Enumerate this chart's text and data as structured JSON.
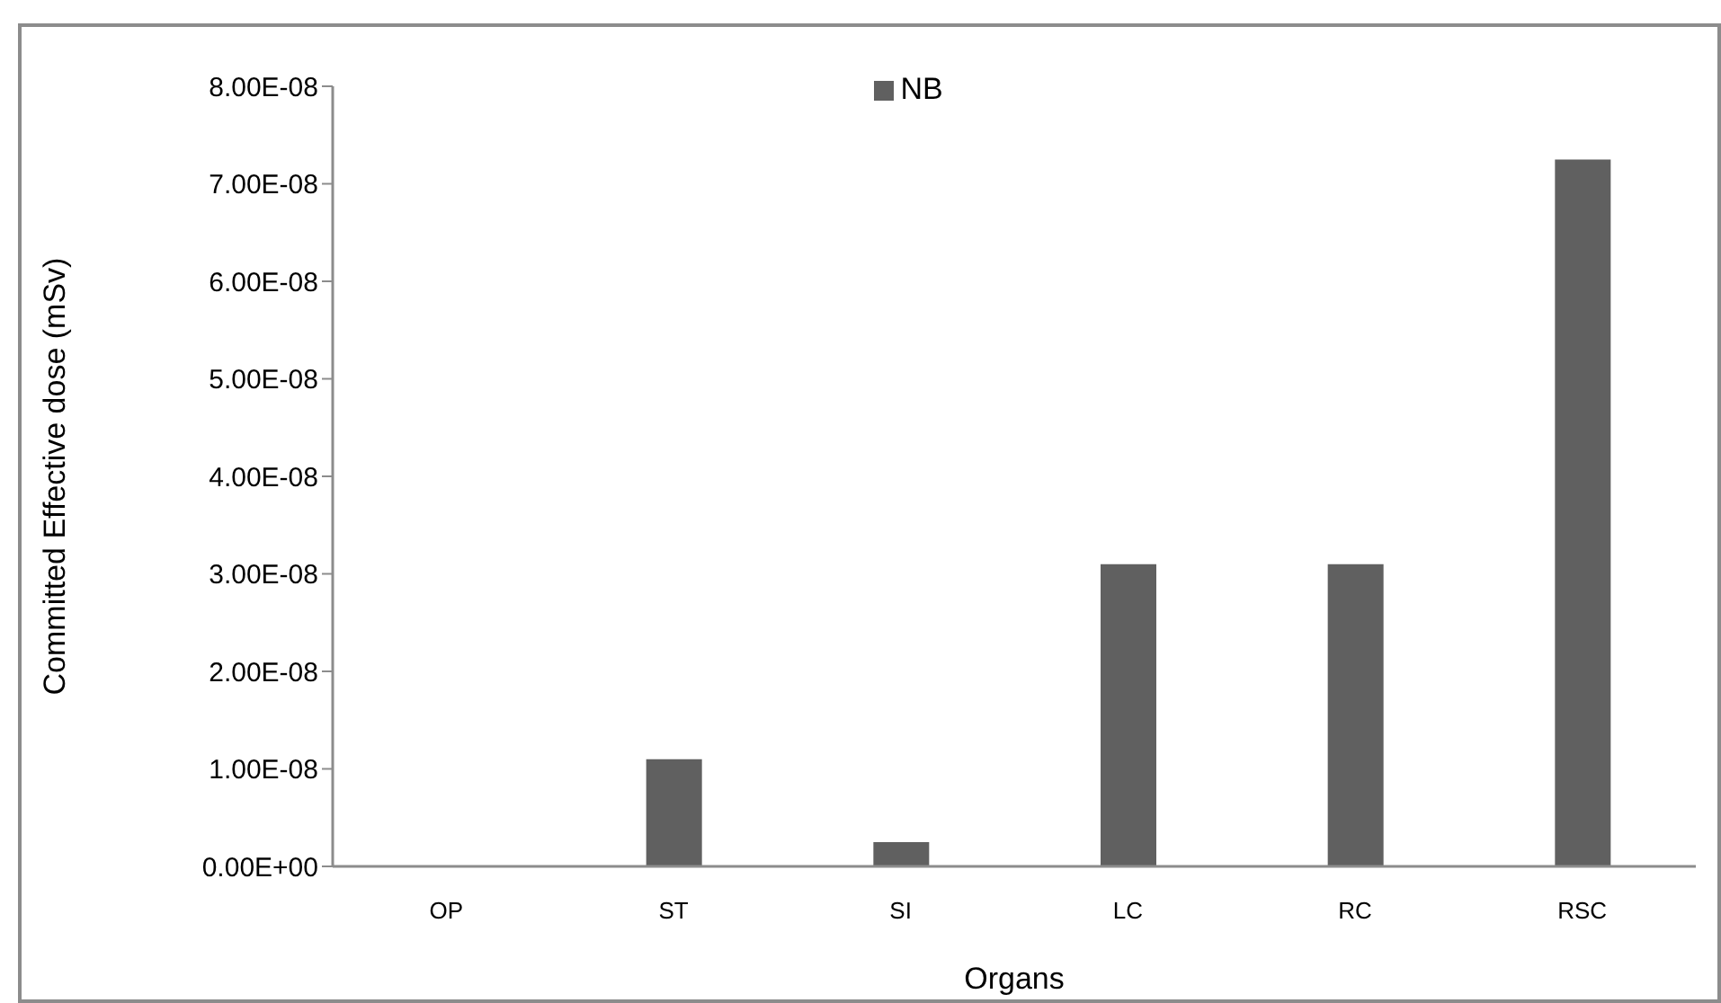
{
  "chart_data": {
    "type": "bar",
    "xlabel": "Organs",
    "ylabel": "Committed Effective dose (mSv)",
    "categories": [
      "OP",
      "ST",
      "SI",
      "LC",
      "RC",
      "RSC"
    ],
    "series": [
      {
        "name": "NB",
        "color": "#606060",
        "values": [
          0,
          1.1e-08,
          2.5e-09,
          3.1e-08,
          3.1e-08,
          7.25e-08
        ]
      }
    ],
    "ylim": [
      0,
      8e-08
    ],
    "yticks": [
      {
        "value": 0,
        "label": "0.00E+00"
      },
      {
        "value": 1e-08,
        "label": "1.00E-08"
      },
      {
        "value": 2e-08,
        "label": "2.00E-08"
      },
      {
        "value": 3e-08,
        "label": "3.00E-08"
      },
      {
        "value": 4e-08,
        "label": "4.00E-08"
      },
      {
        "value": 5e-08,
        "label": "5.00E-08"
      },
      {
        "value": 6e-08,
        "label": "6.00E-08"
      },
      {
        "value": 7e-08,
        "label": "7.00E-08"
      },
      {
        "value": 8e-08,
        "label": "8.00E-08"
      }
    ],
    "grid": false,
    "legend": "top"
  }
}
